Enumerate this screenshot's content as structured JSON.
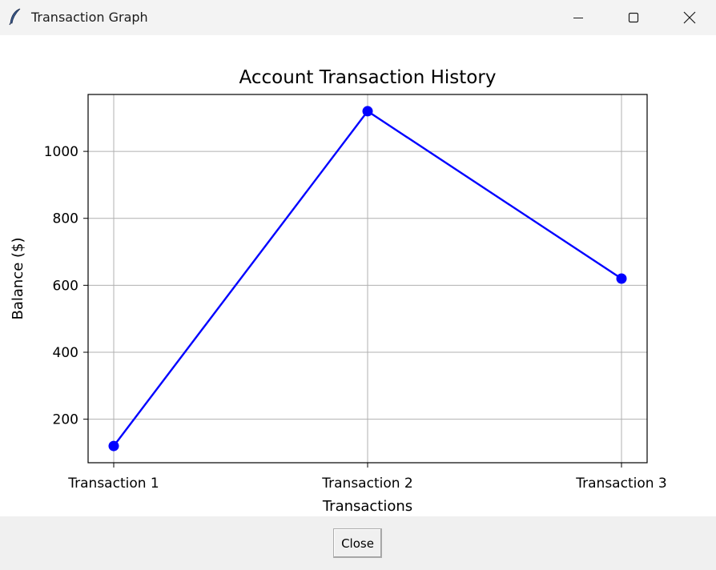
{
  "window": {
    "title": "Transaction Graph",
    "icon": "feather-icon",
    "controls": [
      "minimize-icon",
      "maximize-icon",
      "close-icon"
    ]
  },
  "footer": {
    "close_label": "Close"
  },
  "chart_data": {
    "type": "line",
    "title": "Account Transaction History",
    "xlabel": "Transactions",
    "ylabel": "Balance ($)",
    "categories": [
      "Transaction 1",
      "Transaction 2",
      "Transaction 3"
    ],
    "series": [
      {
        "values": [
          120,
          1120,
          620
        ],
        "color": "#0000ff",
        "marker": "circle"
      }
    ],
    "ylim": [
      70,
      1170
    ],
    "yticks": [
      200,
      400,
      600,
      800,
      1000
    ],
    "grid": true
  }
}
